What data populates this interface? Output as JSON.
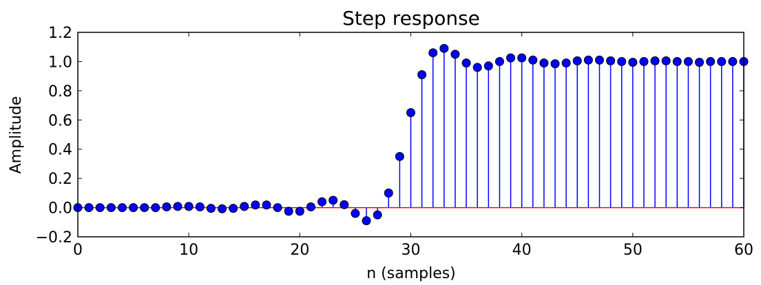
{
  "chart_data": {
    "type": "stem",
    "title": "Step response",
    "xlabel": "n (samples)",
    "ylabel": "Amplitude",
    "xlim": [
      0,
      60
    ],
    "ylim": [
      -0.2,
      1.2
    ],
    "x_ticks": [
      "0",
      "10",
      "20",
      "30",
      "40",
      "50",
      "60"
    ],
    "y_ticks": [
      "−0.2",
      "0.0",
      "0.2",
      "0.4",
      "0.6",
      "0.8",
      "1.0",
      "1.2"
    ],
    "grid": false,
    "baseline": 0,
    "colors": {
      "stem": "#0000ff",
      "marker": "#0000ff",
      "baseline": "#ff0000"
    },
    "x": [
      0,
      1,
      2,
      3,
      4,
      5,
      6,
      7,
      8,
      9,
      10,
      11,
      12,
      13,
      14,
      15,
      16,
      17,
      18,
      19,
      20,
      21,
      22,
      23,
      24,
      25,
      26,
      27,
      28,
      29,
      30,
      31,
      32,
      33,
      34,
      35,
      36,
      37,
      38,
      39,
      40,
      41,
      42,
      43,
      44,
      45,
      46,
      47,
      48,
      49,
      50,
      51,
      52,
      53,
      54,
      55,
      56,
      57,
      58,
      59,
      60
    ],
    "values": [
      0.0,
      0.0,
      0.0,
      0.0,
      0.0,
      0.0,
      0.0,
      0.0,
      0.005,
      0.008,
      0.008,
      0.005,
      -0.005,
      -0.008,
      -0.005,
      0.008,
      0.018,
      0.018,
      0.0,
      -0.025,
      -0.025,
      0.005,
      0.04,
      0.05,
      0.02,
      -0.04,
      -0.09,
      -0.05,
      0.1,
      0.35,
      0.65,
      0.91,
      1.06,
      1.09,
      1.05,
      0.99,
      0.96,
      0.97,
      1.0,
      1.025,
      1.025,
      1.01,
      0.99,
      0.985,
      0.99,
      1.005,
      1.01,
      1.01,
      1.005,
      1.0,
      0.995,
      1.0,
      1.005,
      1.005,
      1.0,
      1.0,
      0.995,
      1.0,
      1.0,
      1.0,
      1.0
    ]
  }
}
